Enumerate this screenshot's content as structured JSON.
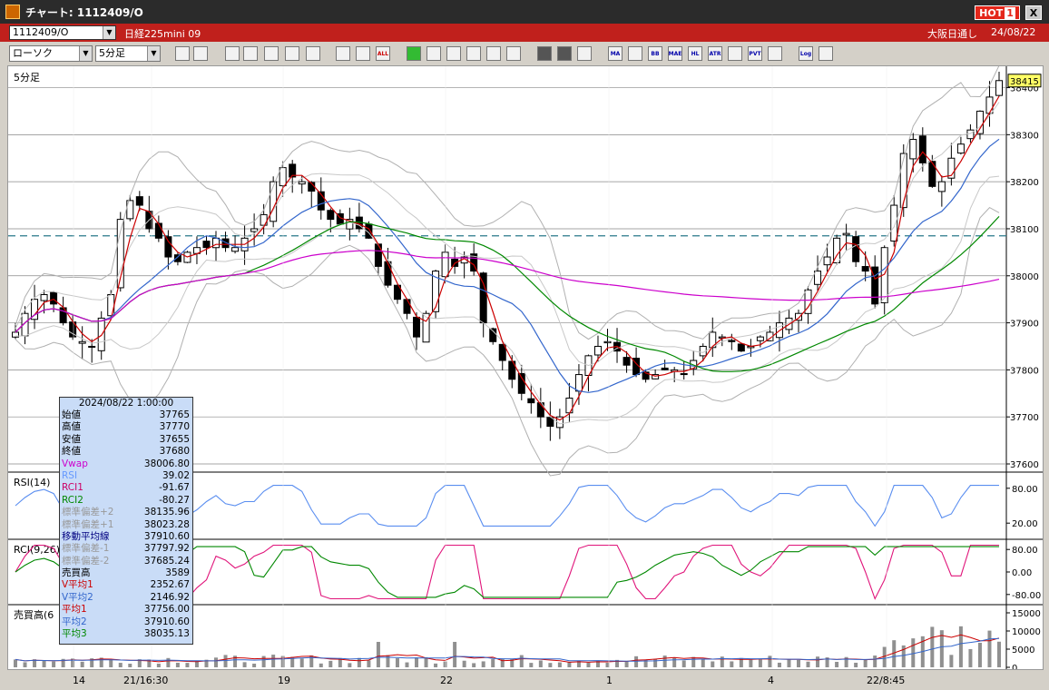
{
  "window": {
    "title": "チャート: 1112409/O",
    "hot_label": "HOT",
    "hot_num": "1",
    "close_label": "X"
  },
  "symbolbar": {
    "symbol": "1112409/O",
    "name": "日経225mini 09",
    "market": "大阪日通し",
    "date": "24/08/22"
  },
  "controls": {
    "chart_type": "ローソク",
    "interval": "5分足"
  },
  "toolbar_icons": [
    "zoom-icon",
    "split-icon",
    "cut-icon",
    "find-icon",
    "grid-icon",
    "candle-icon",
    "compare-icon",
    "box-icon",
    "box-all-icon",
    "all-icon",
    "pen-icon",
    "draw-icon",
    "cursor-icon",
    "undo-icon",
    "copy-icon",
    "delete-icon",
    "layers-icon",
    "wrench-icon",
    "color-icon",
    "ma-icon",
    "mm-icon",
    "bb-icon",
    "mae-icon",
    "hl-icon",
    "atr-icon",
    "rsi-icon",
    "pvt-icon",
    "window-icon",
    "log-icon",
    "save-icon"
  ],
  "toolbar_labels": {
    "all": "ALL",
    "ma": "MA",
    "bb": "BB",
    "mae": "MAE",
    "hl": "HL",
    "atr": "ATR",
    "pvt": "PVT",
    "log": "Log"
  },
  "main_panel": {
    "label": "5分足",
    "current_price": "38415",
    "price_ticks": [
      "38400",
      "38300",
      "38200",
      "38100",
      "38000",
      "37900",
      "37800",
      "37700",
      "37600"
    ],
    "dashed_level": 38085
  },
  "rsi_panel": {
    "label": "RSI(14)",
    "ticks": [
      "80.00",
      "20.00"
    ]
  },
  "rci_panel": {
    "label": "RCI(9,26)",
    "ticks": [
      "80.00",
      "0.00",
      "-80.00"
    ]
  },
  "volume_panel": {
    "label": "売買高(6",
    "ticks": [
      "15000",
      "10000",
      "5000",
      "0"
    ]
  },
  "x_axis": [
    "14",
    "21/16:30",
    "19",
    "22",
    "1",
    "4",
    "22/8:45"
  ],
  "ohlc_box": {
    "datetime": "2024/08/22 1:00:00",
    "rows": [
      {
        "label": "始値",
        "value": "37765",
        "color": "#000000"
      },
      {
        "label": "高値",
        "value": "37770",
        "color": "#000000"
      },
      {
        "label": "安値",
        "value": "37655",
        "color": "#000000"
      },
      {
        "label": "終値",
        "value": "37680",
        "color": "#000000"
      },
      {
        "label": "Vwap",
        "value": "38006.80",
        "color": "#cc00cc"
      },
      {
        "label": "RSI",
        "value": "39.02",
        "color": "#6699ff"
      },
      {
        "label": "RCI1",
        "value": "-91.67",
        "color": "#cc0066"
      },
      {
        "label": "RCI2",
        "value": "-80.27",
        "color": "#008800"
      },
      {
        "label": "標準偏差+2",
        "value": "38135.96",
        "color": "#999999"
      },
      {
        "label": "標準偏差+1",
        "value": "38023.28",
        "color": "#999999"
      },
      {
        "label": "移動平均線",
        "value": "37910.60",
        "color": "#000080"
      },
      {
        "label": "標準偏差-1",
        "value": "37797.92",
        "color": "#999999"
      },
      {
        "label": "標準偏差-2",
        "value": "37685.24",
        "color": "#999999"
      },
      {
        "label": "売買高",
        "value": "3589",
        "color": "#000000"
      },
      {
        "label": "V平均1",
        "value": "2352.67",
        "color": "#cc0000"
      },
      {
        "label": "V平均2",
        "value": "2146.92",
        "color": "#3366cc"
      },
      {
        "label": "平均1",
        "value": "37756.00",
        "color": "#cc0000"
      },
      {
        "label": "平均2",
        "value": "37910.60",
        "color": "#3366cc"
      },
      {
        "label": "平均3",
        "value": "38035.13",
        "color": "#008800"
      }
    ]
  },
  "chart_data": {
    "type": "candlestick",
    "interval": "5分足",
    "ylim": [
      37600,
      38430
    ],
    "x_tick_labels": [
      "14",
      "21/16:30",
      "19",
      "22",
      "1",
      "4",
      "22/8:45"
    ],
    "close_path": [
      37880,
      37920,
      37950,
      37960,
      37940,
      37900,
      37870,
      37860,
      37850,
      37910,
      37960,
      38120,
      38160,
      38150,
      38100,
      38080,
      38040,
      38030,
      38050,
      38060,
      38060,
      38080,
      38060,
      38060,
      38080,
      38100,
      38130,
      38200,
      38230,
      38210,
      38200,
      38180,
      38140,
      38120,
      38110,
      38120,
      38100,
      38080,
      38020,
      37980,
      37950,
      37920,
      37870,
      37920,
      38010,
      38050,
      38020,
      38040,
      38010,
      37900,
      37860,
      37820,
      37780,
      37750,
      37730,
      37700,
      37680,
      37700,
      37740,
      37790,
      37830,
      37850,
      37860,
      37840,
      37810,
      37790,
      37780,
      37790,
      37800,
      37800,
      37790,
      37820,
      37850,
      37880,
      37870,
      37860,
      37840,
      37850,
      37870,
      37880,
      37900,
      37910,
      37920,
      37970,
      38010,
      38040,
      38080,
      38090,
      38030,
      38010,
      37940,
      38060,
      38150,
      38260,
      38290,
      38240,
      38190,
      38200,
      38250,
      38280,
      38310,
      38350,
      38380,
      38415
    ],
    "volume_scale": [
      0,
      15000
    ],
    "rsi_range": [
      0,
      100
    ],
    "rci_range": [
      -100,
      100
    ]
  }
}
